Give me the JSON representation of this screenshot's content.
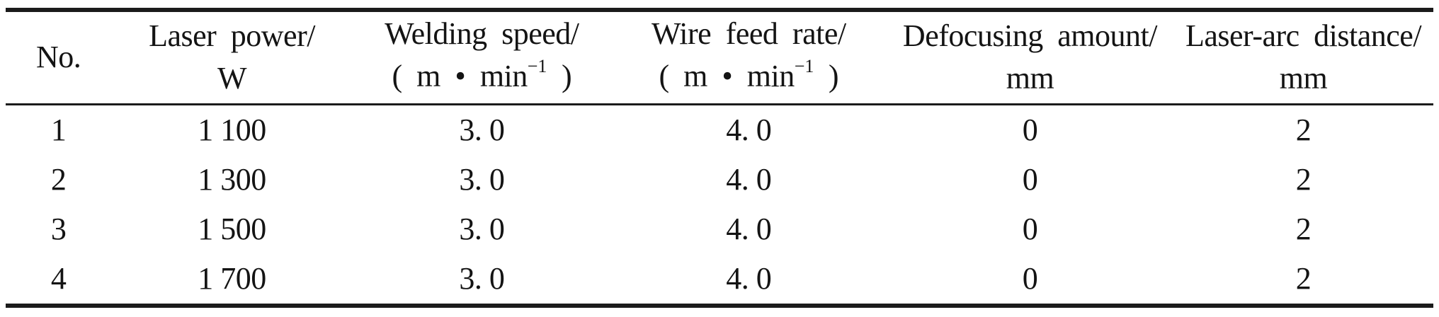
{
  "page": {
    "background_color": "#ffffff",
    "text_color": "#141414",
    "rule_color": "#1b1b1b"
  },
  "table": {
    "columns": [
      {
        "title": "No.",
        "unit": ""
      },
      {
        "title": "Laser power/",
        "unit": "W"
      },
      {
        "title": "Welding speed/",
        "unit_pre": "( m • min",
        "unit_sup": "−1",
        "unit_post": " )"
      },
      {
        "title": "Wire feed rate/",
        "unit_pre": "( m • min",
        "unit_sup": "−1",
        "unit_post": " )"
      },
      {
        "title": "Defocusing amount/",
        "unit": "mm"
      },
      {
        "title": "Laser-arc distance/",
        "unit": "mm"
      }
    ],
    "rows": [
      [
        "1",
        "1 100",
        "3. 0",
        "4. 0",
        "0",
        "2"
      ],
      [
        "2",
        "1 300",
        "3. 0",
        "4. 0",
        "0",
        "2"
      ],
      [
        "3",
        "1 500",
        "3. 0",
        "4. 0",
        "0",
        "2"
      ],
      [
        "4",
        "1 700",
        "3. 0",
        "4. 0",
        "0",
        "2"
      ]
    ]
  }
}
